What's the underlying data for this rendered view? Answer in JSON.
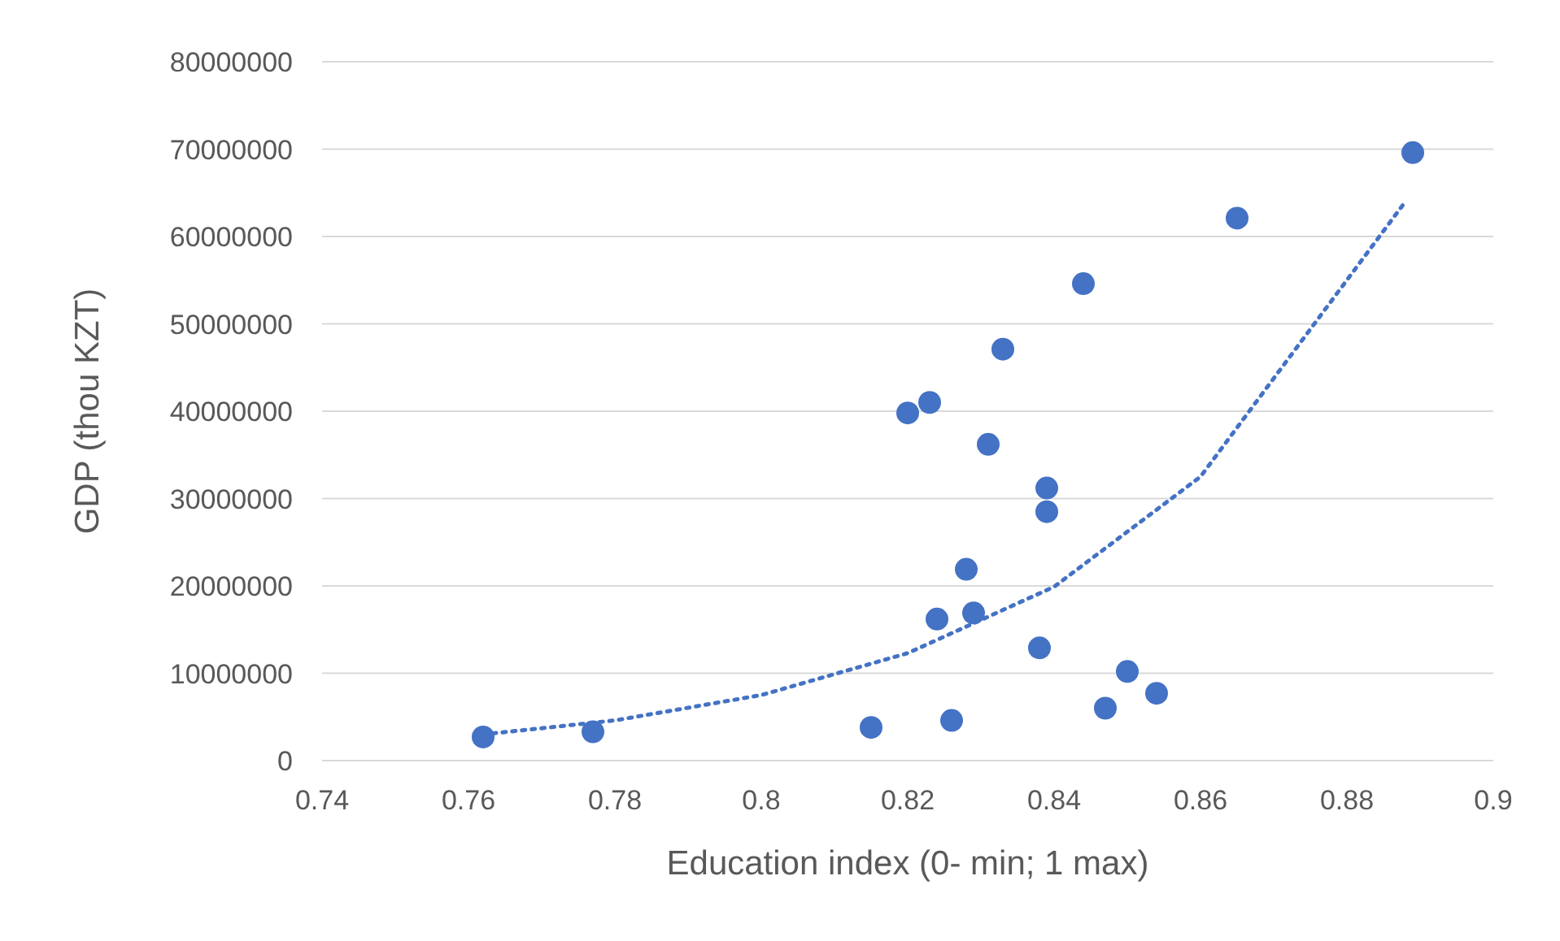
{
  "chart_data": {
    "type": "scatter",
    "xlabel": "Education index (0- min; 1 max)",
    "ylabel": "GDP (thou KZT)",
    "xlim": [
      0.74,
      0.9
    ],
    "xticks": [
      0.74,
      0.76,
      0.78,
      0.8,
      0.82,
      0.84,
      0.86,
      0.88,
      0.9
    ],
    "ylim": [
      0,
      80000000
    ],
    "yticks": [
      0,
      10000000,
      20000000,
      30000000,
      40000000,
      50000000,
      60000000,
      70000000,
      80000000
    ],
    "grid": "y",
    "marker": "circle",
    "series": [
      {
        "color": "#4472c4",
        "x": [
          0.762,
          0.777,
          0.815,
          0.82,
          0.823,
          0.824,
          0.826,
          0.828,
          0.829,
          0.831,
          0.833,
          0.838,
          0.839,
          0.839,
          0.844,
          0.847,
          0.85,
          0.854,
          0.865,
          0.889
        ],
        "values": [
          2700000,
          3300000,
          3800000,
          39800000,
          41000000,
          16200000,
          4600000,
          21900000,
          16900000,
          36200000,
          47100000,
          12900000,
          28500000,
          31200000,
          54600000,
          6000000,
          10200000,
          7700000,
          62100000,
          69600000
        ]
      },
      {
        "type": "line",
        "color": "#4472c4",
        "line_style": "dotted",
        "marker": "none",
        "x": [
          0.762,
          0.78,
          0.8,
          0.82,
          0.84,
          0.86,
          0.888
        ],
        "values": [
          3000000,
          4600000,
          7500000,
          12300000,
          19900000,
          32500000,
          64000000
        ]
      }
    ]
  }
}
